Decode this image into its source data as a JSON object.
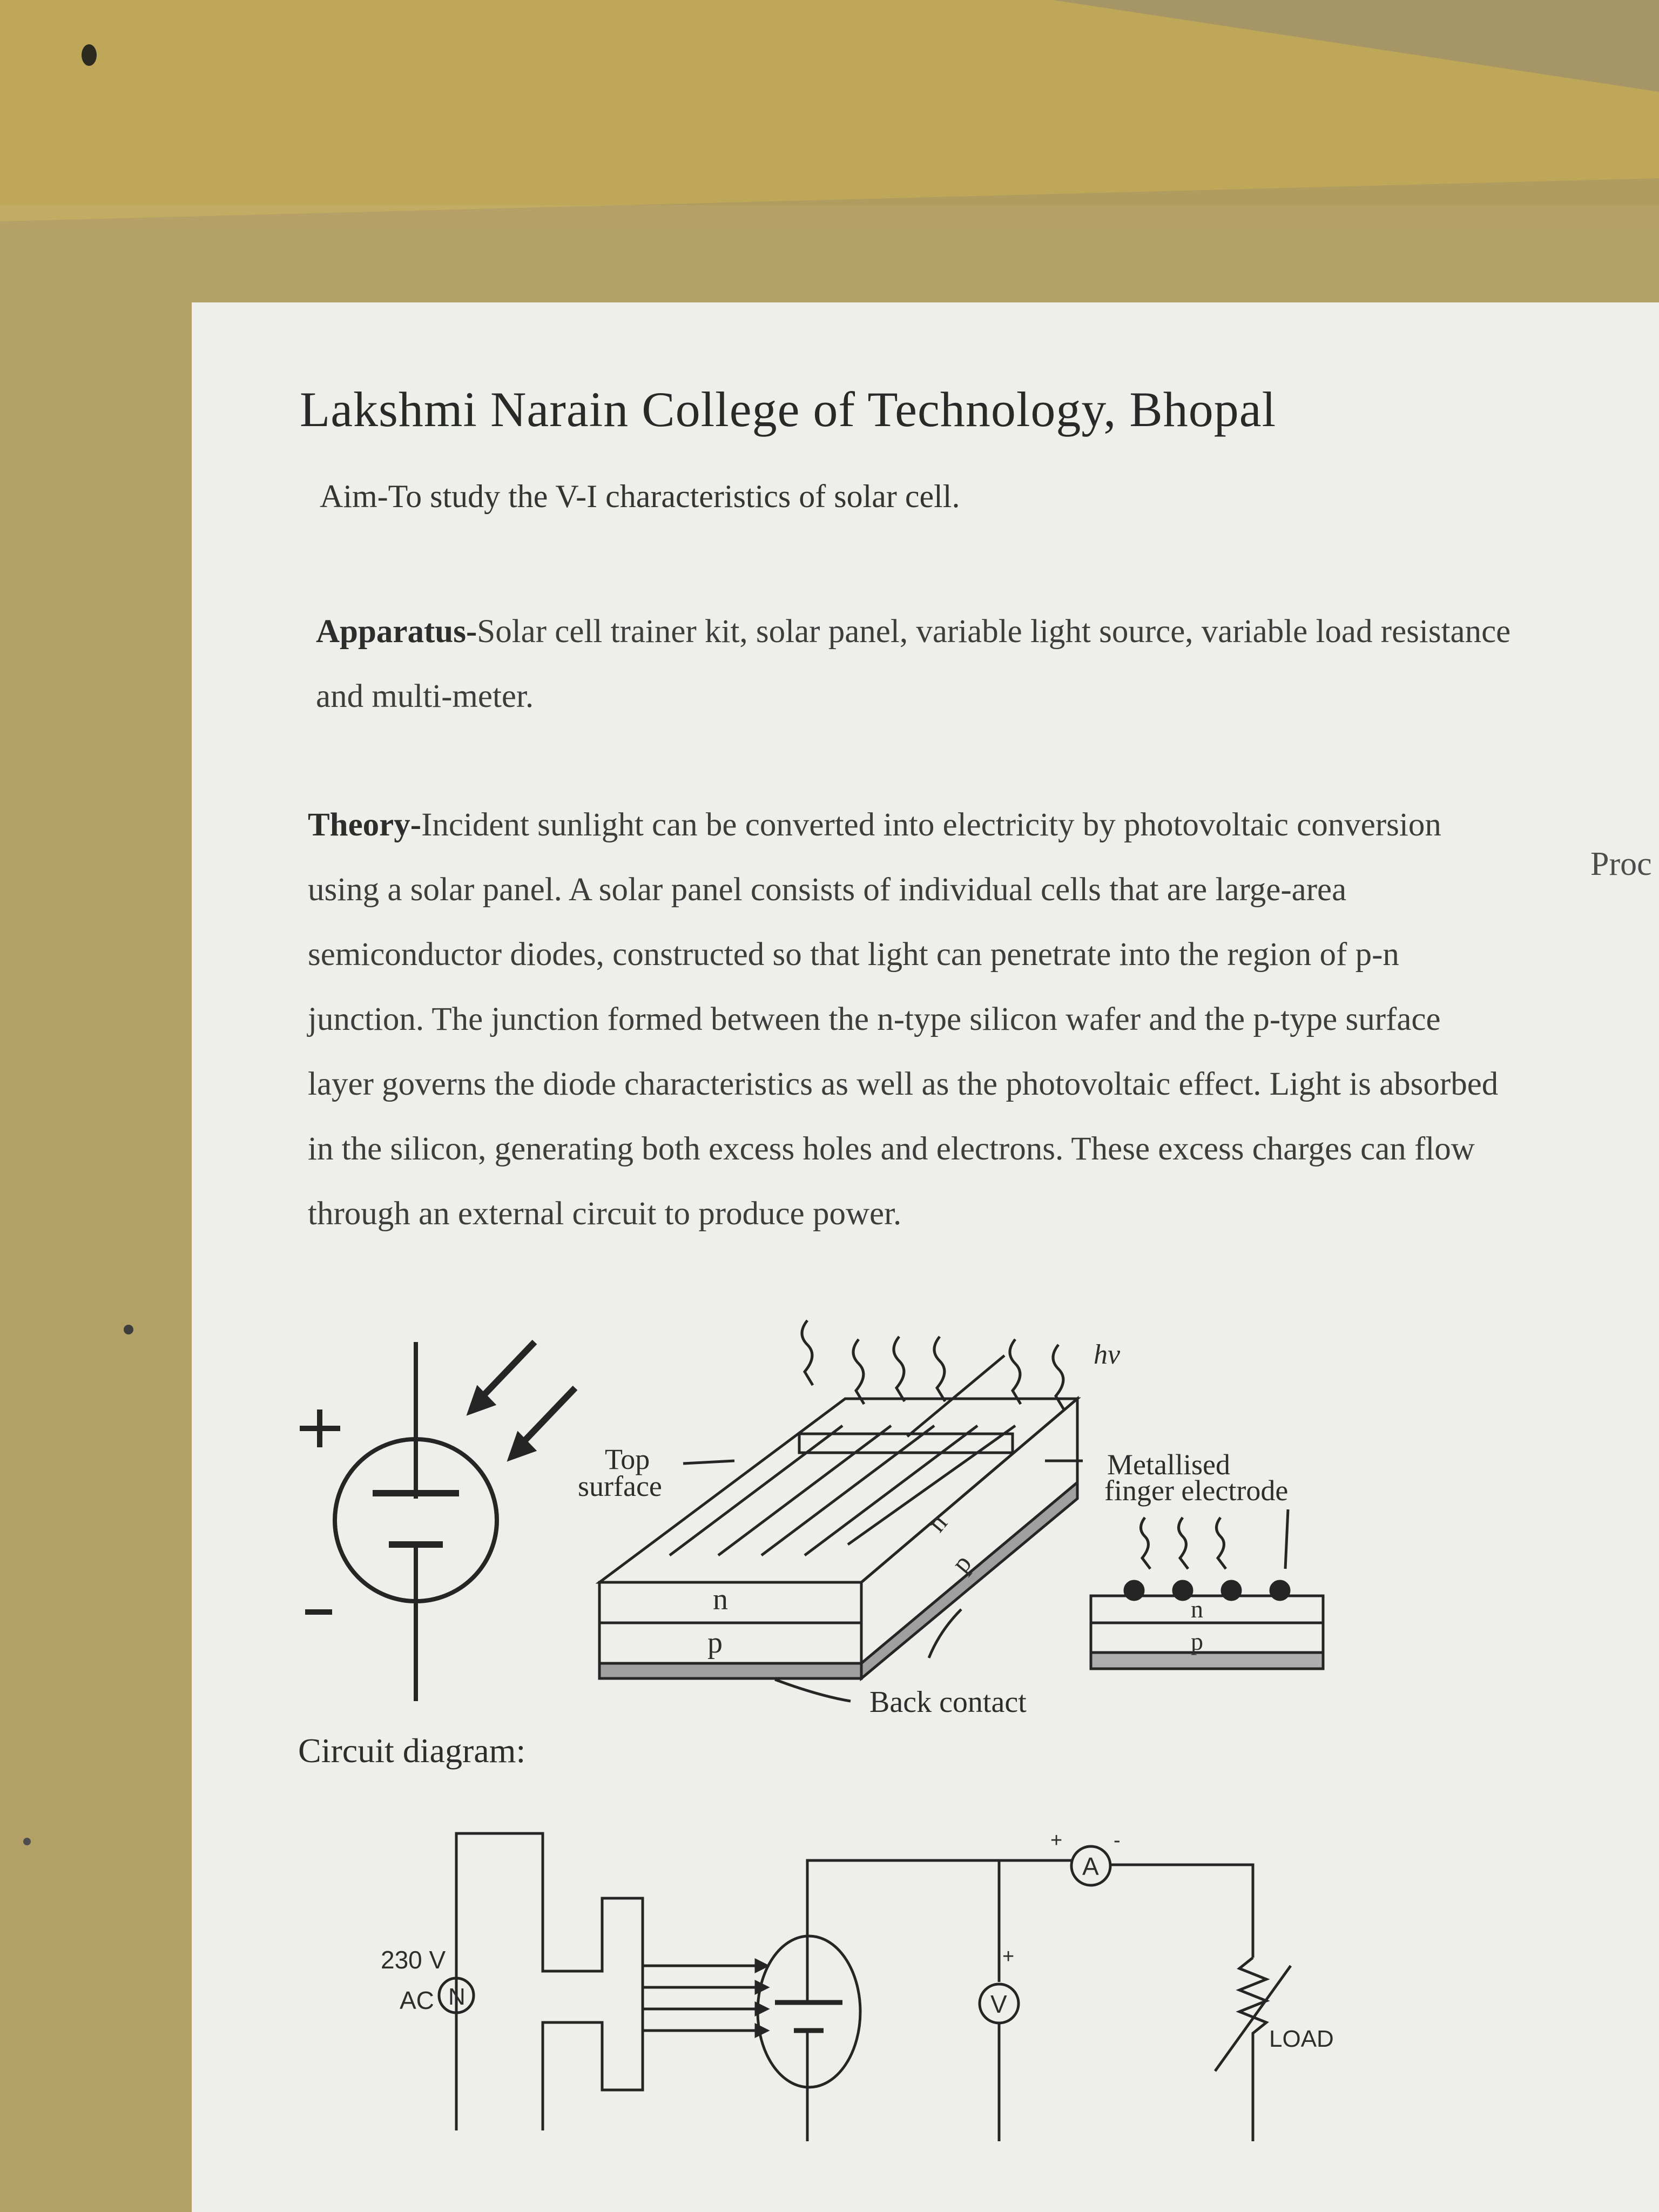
{
  "document": {
    "title": "Lakshmi Narain College of Technology, Bhopal",
    "aim": "Aim-To study the V-I characteristics of solar cell.",
    "apparatus": {
      "label": "Apparatus-",
      "text": "Solar cell trainer kit, solar panel, variable light source, variable load resistance and multi-meter."
    },
    "theory": {
      "label": "Theory-",
      "text": "Incident sunlight can be converted into electricity by photovoltaic conversion using a solar panel. A solar panel consists of individual cells that are large-area semiconductor diodes, constructed so that light can penetrate into the region of p-n junction. The junction formed between the n-type silicon wafer and the p-type surface layer governs the diode characteristics as well as the photovoltaic effect. Light is absorbed in the silicon, generating both excess holes and electrons. These excess charges can flow through an external circuit to produce power."
    },
    "circuit_heading": "Circuit diagram:"
  },
  "figure": {
    "symbol_plus": "+",
    "symbol_minus": "–",
    "hv": "hv",
    "top_surface_line1": "Top",
    "top_surface_line2": "surface",
    "metallised_line1": "Metallised",
    "metallised_line2": "finger electrode",
    "layer_n": "n",
    "layer_p": "p",
    "back_contact": "Back contact"
  },
  "circuit": {
    "source_voltage": "230 V",
    "source_type": "AC",
    "source_symbol": "N",
    "ammeter": "A",
    "voltmeter": "V",
    "load": "LOAD",
    "plus": "+",
    "minus": "-"
  },
  "adjacent_page": {
    "fragment": "Proc"
  },
  "colors": {
    "desk": "#b59e54",
    "sheet": "#eeeeea",
    "ink": "#2a2a2a"
  }
}
